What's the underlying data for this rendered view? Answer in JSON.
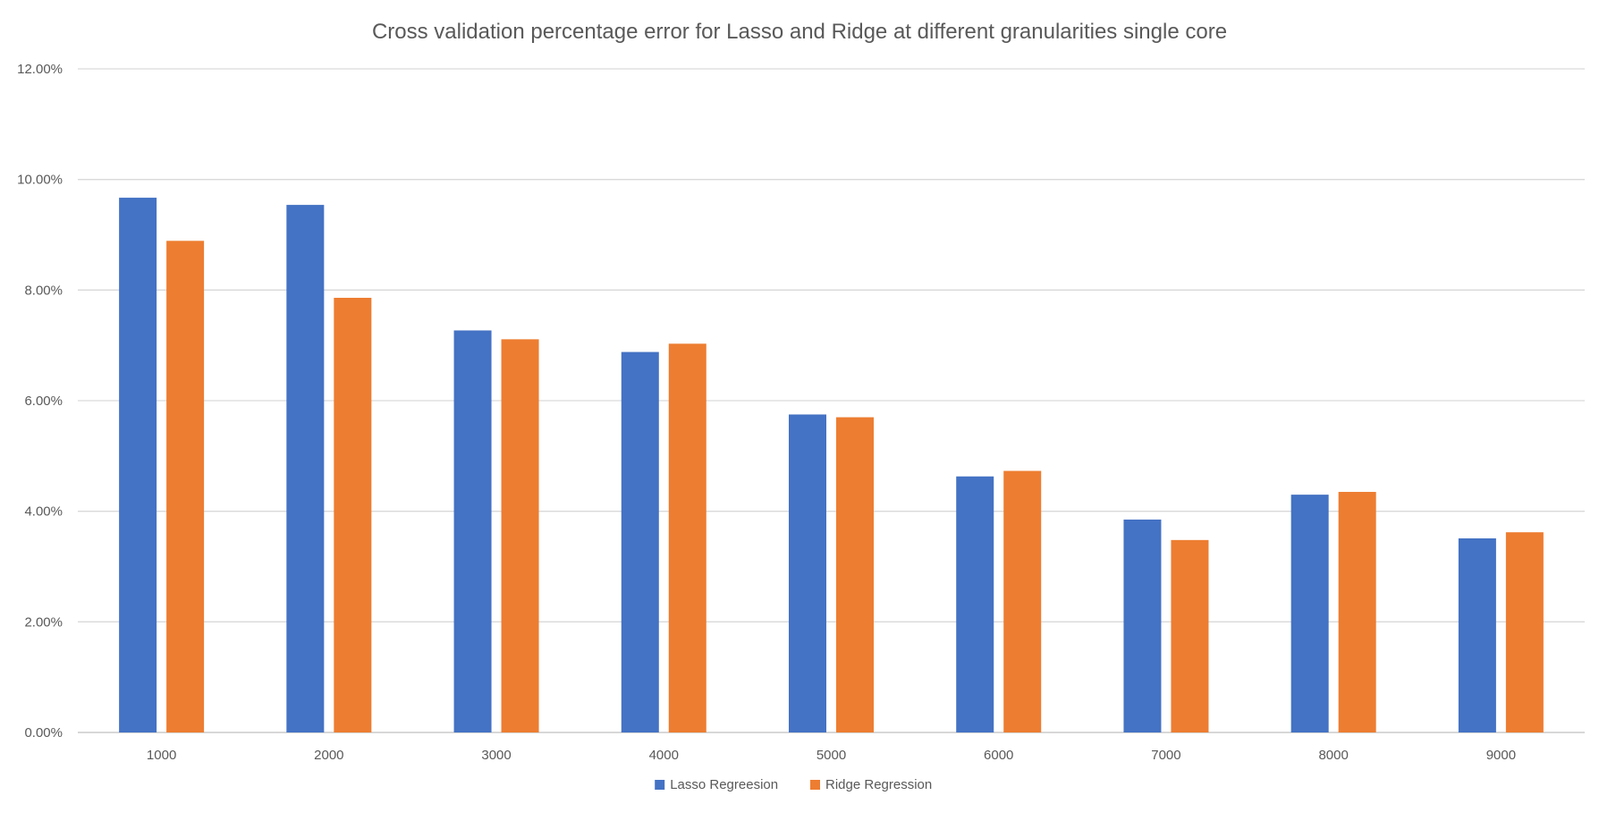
{
  "chart_data": {
    "type": "bar",
    "title": "Cross validation percentage error for Lasso and Ridge at different granularities single core",
    "xlabel": "",
    "ylabel": "",
    "categories": [
      "1000",
      "2000",
      "3000",
      "4000",
      "5000",
      "6000",
      "7000",
      "8000",
      "9000"
    ],
    "series": [
      {
        "name": "Lasso Regreesion",
        "color": "#4472C4",
        "values": [
          9.67,
          9.54,
          7.27,
          6.88,
          5.75,
          4.63,
          3.85,
          4.3,
          3.51
        ]
      },
      {
        "name": "Ridge Regression",
        "color": "#ED7D31",
        "values": [
          8.89,
          7.86,
          7.11,
          7.03,
          5.7,
          4.73,
          3.48,
          4.35,
          3.62
        ]
      }
    ],
    "ylim": [
      0,
      12
    ],
    "yticks": [
      "0.00%",
      "2.00%",
      "4.00%",
      "6.00%",
      "8.00%",
      "10.00%",
      "12.00%"
    ],
    "ytick_values": [
      0,
      2,
      4,
      6,
      8,
      10,
      12
    ],
    "grid": true,
    "legend_position": "bottom"
  }
}
